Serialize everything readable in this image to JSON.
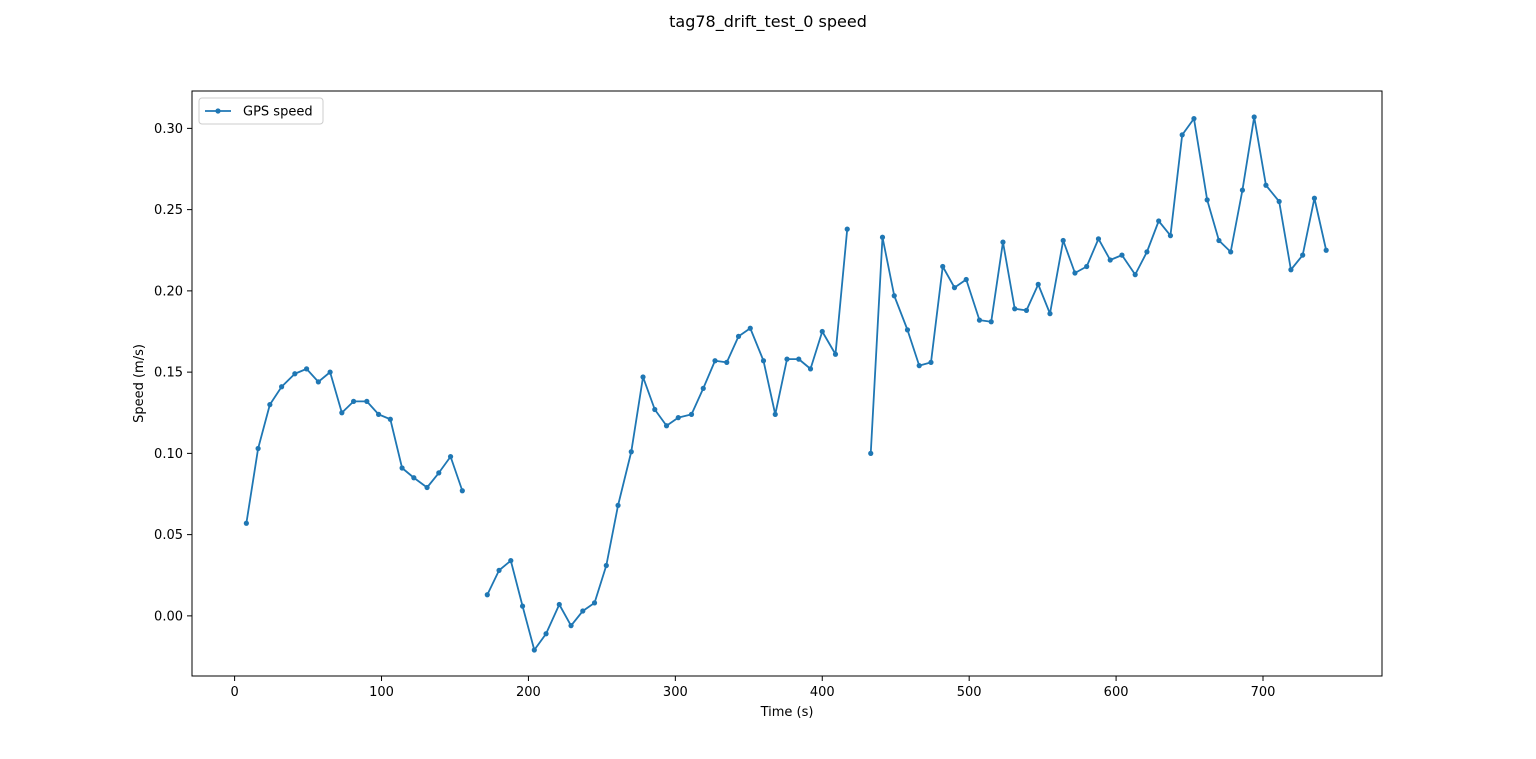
{
  "chart_data": {
    "type": "line",
    "title": "tag78_drift_test_0 speed",
    "xlabel": "Time (s)",
    "ylabel": "Speed (m/s)",
    "xlim": [
      -29,
      781
    ],
    "ylim": [
      -0.037,
      0.323
    ],
    "x_ticks": [
      0,
      100,
      200,
      300,
      400,
      500,
      600,
      700
    ],
    "y_ticks": [
      0.0,
      0.05,
      0.1,
      0.15,
      0.2,
      0.25,
      0.3
    ],
    "x_tick_labels": [
      "0",
      "100",
      "200",
      "300",
      "400",
      "500",
      "600",
      "700"
    ],
    "y_tick_labels": [
      "0.00",
      "0.05",
      "0.10",
      "0.15",
      "0.20",
      "0.25",
      "0.30"
    ],
    "grid": false,
    "legend_position": "top-left",
    "series": [
      {
        "name": "GPS speed",
        "color": "#1f77b4",
        "marker": "dot",
        "segments": [
          [
            [
              8,
              0.057
            ],
            [
              16,
              0.103
            ],
            [
              24,
              0.13
            ],
            [
              32,
              0.141
            ],
            [
              41,
              0.149
            ],
            [
              49,
              0.152
            ],
            [
              57,
              0.144
            ],
            [
              65,
              0.15
            ],
            [
              73,
              0.125
            ],
            [
              81,
              0.132
            ],
            [
              90,
              0.132
            ],
            [
              98,
              0.124
            ],
            [
              106,
              0.121
            ],
            [
              114,
              0.091
            ],
            [
              122,
              0.085
            ],
            [
              131,
              0.079
            ],
            [
              139,
              0.088
            ],
            [
              147,
              0.098
            ],
            [
              155,
              0.077
            ]
          ],
          [
            [
              172,
              0.013
            ],
            [
              180,
              0.028
            ],
            [
              188,
              0.034
            ],
            [
              196,
              0.006
            ],
            [
              204,
              -0.021
            ],
            [
              212,
              -0.011
            ],
            [
              221,
              0.007
            ],
            [
              229,
              -0.006
            ],
            [
              237,
              0.003
            ],
            [
              245,
              0.008
            ],
            [
              253,
              0.031
            ],
            [
              261,
              0.068
            ],
            [
              270,
              0.101
            ],
            [
              278,
              0.147
            ],
            [
              286,
              0.127
            ],
            [
              294,
              0.117
            ],
            [
              302,
              0.122
            ],
            [
              311,
              0.124
            ],
            [
              319,
              0.14
            ],
            [
              327,
              0.157
            ],
            [
              335,
              0.156
            ],
            [
              343,
              0.172
            ],
            [
              351,
              0.177
            ],
            [
              360,
              0.157
            ],
            [
              368,
              0.124
            ],
            [
              376,
              0.158
            ],
            [
              384,
              0.158
            ],
            [
              392,
              0.152
            ],
            [
              400,
              0.175
            ],
            [
              409,
              0.161
            ],
            [
              417,
              0.238
            ]
          ],
          [
            [
              433,
              0.1
            ],
            [
              441,
              0.233
            ],
            [
              449,
              0.197
            ],
            [
              458,
              0.176
            ],
            [
              466,
              0.154
            ],
            [
              474,
              0.156
            ],
            [
              482,
              0.215
            ],
            [
              490,
              0.202
            ],
            [
              498,
              0.207
            ],
            [
              507,
              0.182
            ],
            [
              515,
              0.181
            ],
            [
              523,
              0.23
            ],
            [
              531,
              0.189
            ],
            [
              539,
              0.188
            ],
            [
              547,
              0.204
            ],
            [
              555,
              0.186
            ],
            [
              564,
              0.231
            ],
            [
              572,
              0.211
            ],
            [
              580,
              0.215
            ],
            [
              588,
              0.232
            ],
            [
              596,
              0.219
            ],
            [
              604,
              0.222
            ],
            [
              613,
              0.21
            ],
            [
              621,
              0.224
            ],
            [
              629,
              0.243
            ],
            [
              637,
              0.234
            ],
            [
              645,
              0.296
            ],
            [
              653,
              0.306
            ],
            [
              662,
              0.256
            ],
            [
              670,
              0.231
            ],
            [
              678,
              0.224
            ],
            [
              686,
              0.262
            ],
            [
              694,
              0.307
            ],
            [
              702,
              0.265
            ],
            [
              711,
              0.255
            ],
            [
              719,
              0.213
            ],
            [
              727,
              0.222
            ],
            [
              735,
              0.257
            ],
            [
              743,
              0.225
            ]
          ]
        ]
      }
    ]
  }
}
